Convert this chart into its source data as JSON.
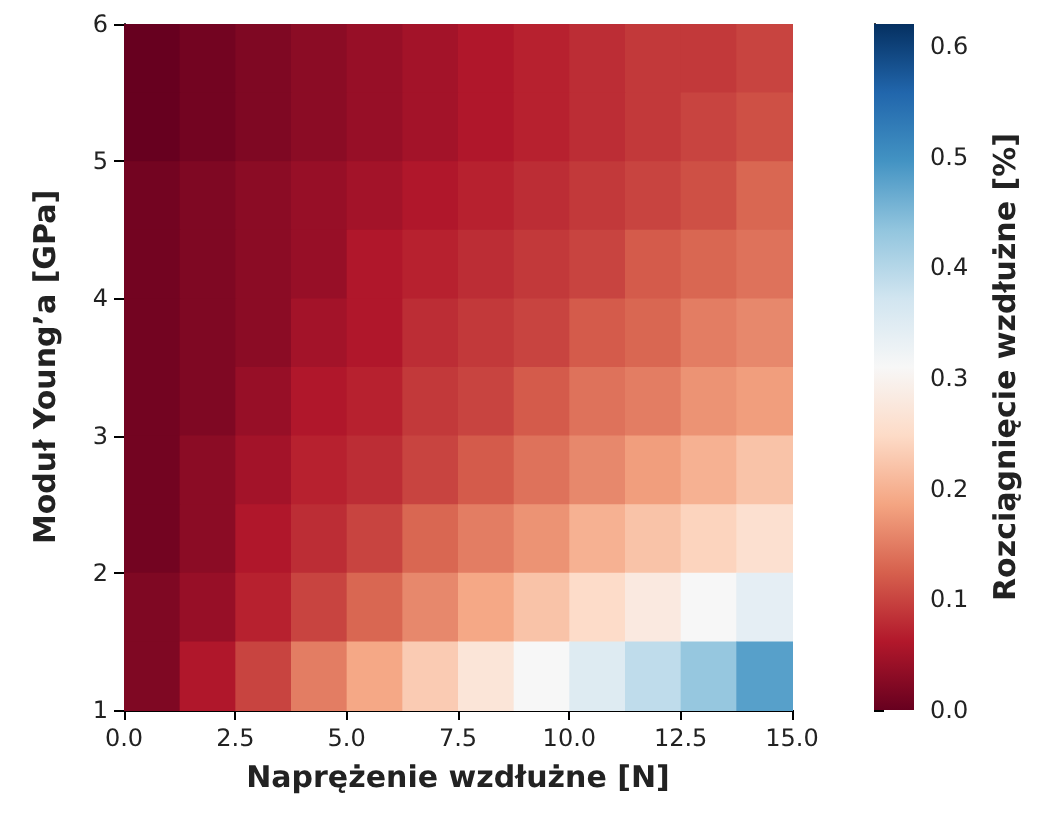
{
  "chart_data": {
    "type": "heatmap",
    "xlabel": "Naprężenie wzdłużne [N]",
    "ylabel": "Moduł Young’a [GPa]",
    "clabel": "Rozciągnięcie wzdłużne [%]",
    "xlim": [
      0,
      15
    ],
    "ylim": [
      1,
      6
    ],
    "xticks": [
      {
        "value": 0,
        "label": "0.0"
      },
      2.5,
      {
        "value": 5,
        "label": "5.0"
      },
      7.5,
      {
        "value": 10,
        "label": "10.0"
      },
      12.5,
      {
        "value": 15,
        "label": "15.0"
      }
    ],
    "yticks": [
      1,
      2,
      3,
      4,
      5,
      6
    ],
    "clim": [
      0,
      0.62
    ],
    "cticks": [
      {
        "value": 0,
        "label": "0.0"
      },
      0.1,
      0.2,
      0.3,
      0.4,
      0.5,
      0.6
    ],
    "cells": [
      [
        0.0,
        0.01,
        0.02,
        0.03,
        0.04,
        0.05,
        0.06,
        0.07,
        0.08,
        0.09,
        0.09,
        0.1
      ],
      [
        0.0,
        0.01,
        0.02,
        0.03,
        0.04,
        0.05,
        0.06,
        0.07,
        0.08,
        0.09,
        0.1,
        0.11
      ],
      [
        0.01,
        0.02,
        0.03,
        0.04,
        0.05,
        0.06,
        0.07,
        0.08,
        0.09,
        0.1,
        0.11,
        0.13
      ],
      [
        0.01,
        0.02,
        0.03,
        0.04,
        0.06,
        0.07,
        0.08,
        0.09,
        0.1,
        0.12,
        0.13,
        0.14
      ],
      [
        0.01,
        0.02,
        0.03,
        0.05,
        0.06,
        0.08,
        0.09,
        0.1,
        0.12,
        0.13,
        0.15,
        0.16
      ],
      [
        0.01,
        0.02,
        0.04,
        0.06,
        0.07,
        0.09,
        0.1,
        0.12,
        0.14,
        0.15,
        0.17,
        0.18
      ],
      [
        0.01,
        0.03,
        0.05,
        0.07,
        0.08,
        0.1,
        0.12,
        0.14,
        0.16,
        0.18,
        0.2,
        0.22
      ],
      [
        0.01,
        0.03,
        0.06,
        0.08,
        0.1,
        0.13,
        0.15,
        0.17,
        0.2,
        0.22,
        0.24,
        0.26
      ],
      [
        0.02,
        0.04,
        0.07,
        0.1,
        0.13,
        0.16,
        0.19,
        0.22,
        0.25,
        0.28,
        0.31,
        0.34
      ],
      [
        0.02,
        0.06,
        0.1,
        0.15,
        0.19,
        0.23,
        0.27,
        0.31,
        0.35,
        0.39,
        0.43,
        0.48
      ]
    ]
  }
}
